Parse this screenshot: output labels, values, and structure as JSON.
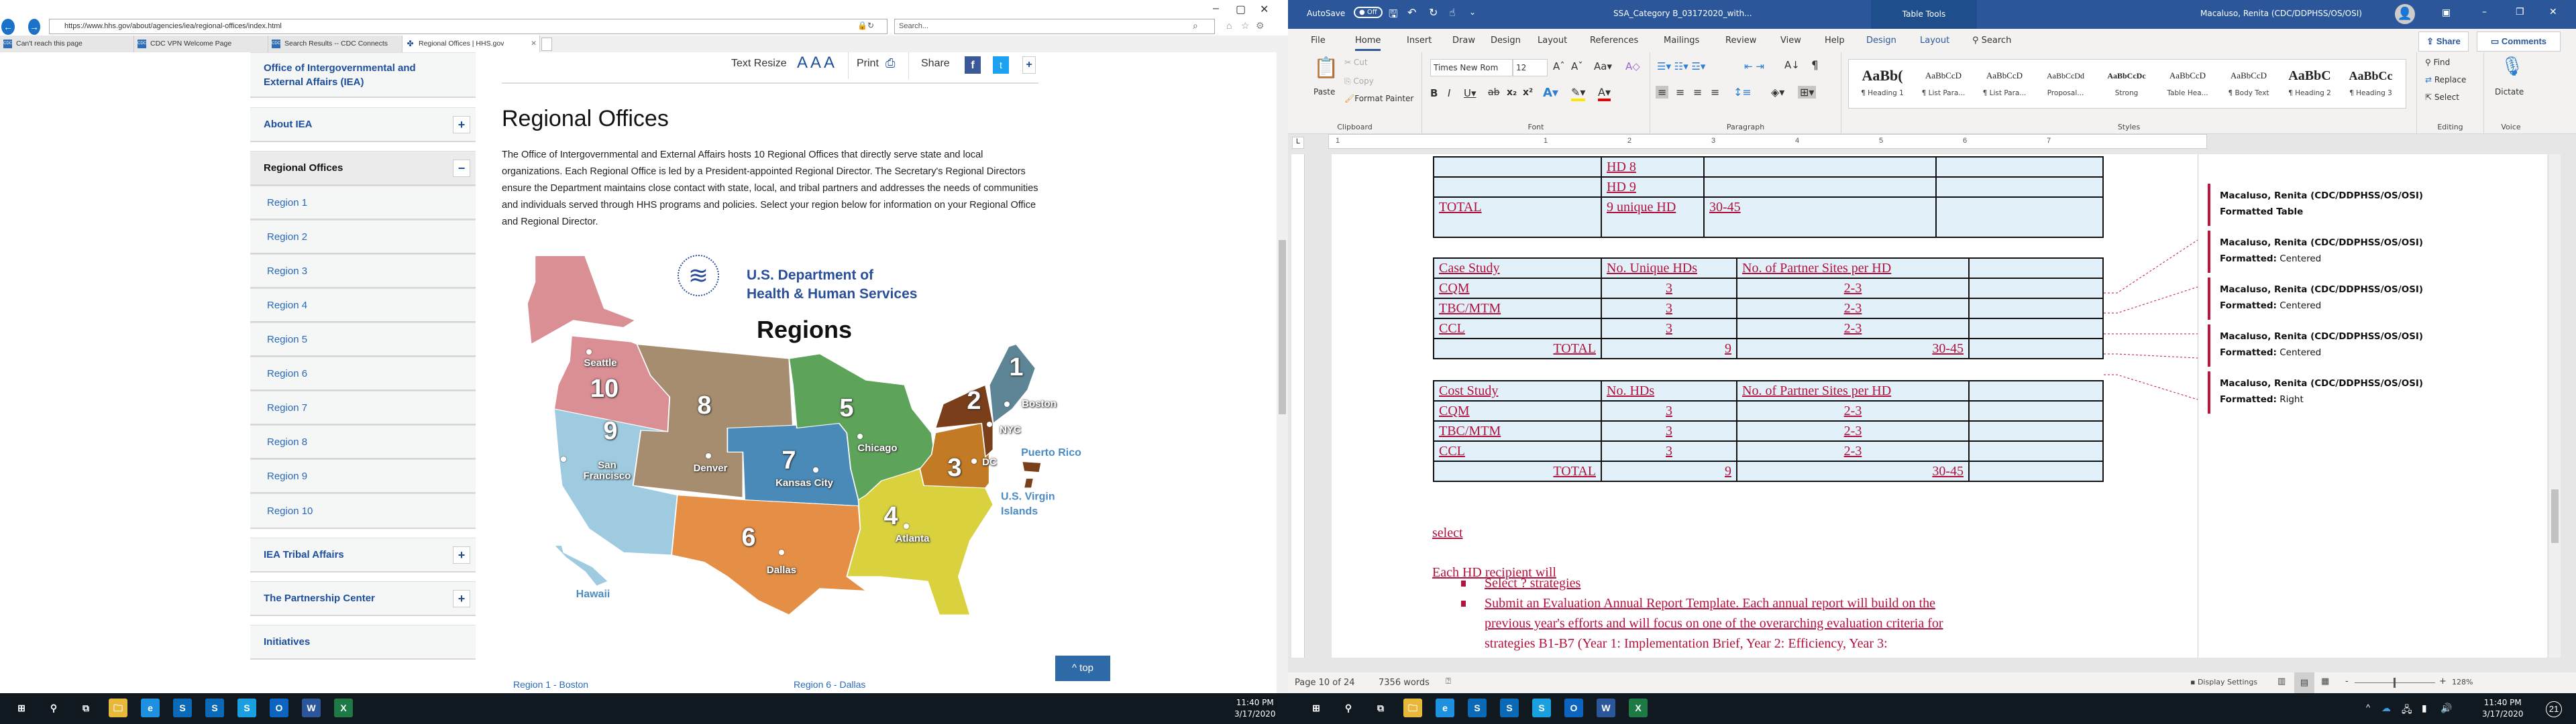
{
  "browser": {
    "url": "https://www.hhs.gov/about/agencies/iea/regional-offices/index.html",
    "search_placeholder": "Search...",
    "tabs": [
      {
        "label": "Can't reach this page"
      },
      {
        "label": "CDC VPN Welcome Page"
      },
      {
        "label": "Search Results -- CDC Connects"
      },
      {
        "label": "Regional Offices | HHS.gov",
        "active": true
      }
    ]
  },
  "page": {
    "toolbar": {
      "text_resize": "Text Resize",
      "aaa": "A A A",
      "print": "Print",
      "share": "Share",
      "plus": "+"
    },
    "sidebar": {
      "office": "Office of Intergovernmental and External Affairs (IEA)",
      "about": "About IEA",
      "regional": "Regional Offices",
      "regions": [
        "Region 1",
        "Region 2",
        "Region 3",
        "Region 4",
        "Region 5",
        "Region 6",
        "Region 7",
        "Region 8",
        "Region 9",
        "Region 10"
      ],
      "tribal": "IEA Tribal Affairs",
      "partnership": "The Partnership Center",
      "initiatives": "Initiatives",
      "plus": "+",
      "minus": "−"
    },
    "title": "Regional Offices",
    "intro": "The Office of Intergovernmental and External Affairs hosts 10 Regional Offices that directly serve state and local organizations. Each Regional Office is led by a President-appointed Regional Director. The Secretary's Regional Directors ensure the Department maintains close contact with state, local, and tribal partners and addresses the needs of communities and individuals served through HHS programs and policies. Select your region below for information on your Regional Office and Regional Director.",
    "map": {
      "logo_line1": "U.S. Department of",
      "logo_line2": "Health & Human Services",
      "heading": "Regions",
      "numbers": [
        "1",
        "2",
        "3",
        "4",
        "5",
        "6",
        "7",
        "8",
        "9",
        "10"
      ],
      "cities": {
        "seattle": "Seattle",
        "sf": "San Francisco",
        "denver": "Denver",
        "kc": "Kansas City",
        "chicago": "Chicago",
        "boston": "Boston",
        "nyc": "NYC",
        "dc": "DC",
        "atlanta": "Atlanta",
        "dallas": "Dallas"
      },
      "territories": {
        "pr": "Puerto Rico",
        "usvi": "U.S. Virgin Islands",
        "hawaii": "Hawaii"
      },
      "colors": {
        "r1": "#5d8596",
        "r2": "#7a3f1a",
        "r3": "#c27a24",
        "r4": "#d9d23e",
        "r5": "#5ea35a",
        "r6": "#e58e45",
        "r7": "#4a8ab8",
        "r8": "#a68d6f",
        "r9": "#9ecbe0",
        "r10": "#d98f94"
      }
    },
    "top_button": "top",
    "links": [
      "Region 1 - Boston",
      "Region 6 - Dallas"
    ]
  },
  "word": {
    "autosave": "AutoSave",
    "autosave_state": "Off",
    "doc_title": "SSA_Category B_03172020_with...",
    "table_tools": "Table Tools",
    "user": "Macaluso, Renita (CDC/DDPHSS/OS/OSI)",
    "tabs": [
      "File",
      "Home",
      "Insert",
      "Draw",
      "Design",
      "Layout",
      "References",
      "Mailings",
      "Review",
      "View",
      "Help",
      "Design",
      "Layout",
      "Search"
    ],
    "share": "Share",
    "comments": "Comments",
    "clipboard": {
      "paste": "Paste",
      "cut": "Cut",
      "copy": "Copy",
      "format_painter": "Format Painter",
      "label": "Clipboard"
    },
    "font": {
      "name": "Times New Rom",
      "size": "12",
      "label": "Font"
    },
    "paragraph_label": "Paragraph",
    "styles": [
      {
        "sample": "AaBb(",
        "name": "¶ Heading 1"
      },
      {
        "sample": "AaBbCcD",
        "name": "¶ List Para..."
      },
      {
        "sample": "AaBbCcD",
        "name": "¶ List Para..."
      },
      {
        "sample": "AaBbCcDd",
        "name": "Proposal..."
      },
      {
        "sample": "AaBbCcDc",
        "name": "Strong"
      },
      {
        "sample": "AaBbCcD",
        "name": "Table Hea..."
      },
      {
        "sample": "AaBbCcD",
        "name": "¶ Body Text"
      },
      {
        "sample": "AaBbC",
        "name": "¶ Heading 2"
      },
      {
        "sample": "AaBbCc",
        "name": "¶ Heading 3"
      }
    ],
    "styles_label": "Styles",
    "editing": {
      "find": "Find",
      "replace": "Replace",
      "select": "Select",
      "label": "Editing"
    },
    "voice": {
      "dictate": "Dictate",
      "label": "Voice"
    },
    "ruler": [
      "1",
      "1",
      "2",
      "3",
      "4",
      "5",
      "6",
      "7"
    ],
    "table1": [
      [
        "",
        "HD 8",
        "",
        ""
      ],
      [
        "",
        "HD 9",
        "",
        ""
      ],
      [
        "TOTAL",
        "9 unique HD",
        "30-45",
        ""
      ]
    ],
    "table2": {
      "header": [
        "Case Study",
        "No. Unique HDs",
        "No. of Partner Sites per HD",
        ""
      ],
      "rows": [
        [
          "CQM",
          "3",
          "2-3",
          ""
        ],
        [
          "TBC/MTM",
          "3",
          "2-3",
          ""
        ],
        [
          "CCL",
          "3",
          "2-3",
          ""
        ]
      ],
      "total": [
        "TOTAL",
        "9",
        "30-45",
        ""
      ]
    },
    "table3": {
      "header": [
        "Cost Study",
        "No. HDs",
        "No. of Partner Sites per HD",
        ""
      ],
      "rows": [
        [
          "CQM",
          "3",
          "2-3",
          ""
        ],
        [
          "TBC/MTM",
          "3",
          "2-3",
          ""
        ],
        [
          "CCL",
          "3",
          "2-3",
          ""
        ]
      ],
      "total": [
        "TOTAL",
        "9",
        "30-45",
        ""
      ]
    },
    "body": {
      "select": "select",
      "each": "Each HD recipient will",
      "bullet1": "Select ? strategies",
      "bullet2_l1": "Submit an Evaluation Annual Report Template. Each annual report will build on the",
      "bullet2_l2": "previous year's efforts and will focus on one of the overarching evaluation criteria for",
      "bullet2_l3": "strategies B1-B7 (Year 1: Implementation Brief, Year 2: Efficiency, Year 3:"
    },
    "comments_pane": [
      {
        "author": "Macaluso, Renita (CDC/DDPHSS/OS/OSI)",
        "label": "Formatted Table",
        "value": ""
      },
      {
        "author": "Macaluso, Renita (CDC/DDPHSS/OS/OSI)",
        "label": "Formatted:",
        "value": "Centered"
      },
      {
        "author": "Macaluso, Renita (CDC/DDPHSS/OS/OSI)",
        "label": "Formatted:",
        "value": "Centered"
      },
      {
        "author": "Macaluso, Renita (CDC/DDPHSS/OS/OSI)",
        "label": "Formatted:",
        "value": "Centered"
      },
      {
        "author": "Macaluso, Renita (CDC/DDPHSS/OS/OSI)",
        "label": "Formatted:",
        "value": "Right"
      }
    ],
    "status": {
      "page": "Page 10 of 24",
      "words": "7356 words",
      "display_settings": "Display Settings",
      "zoom": "128%"
    },
    "accent": "#2b579a",
    "revision_color": "#b3123c"
  },
  "taskbar": {
    "time": "11:40 PM",
    "date": "3/17/2020",
    "notifications": "21"
  }
}
